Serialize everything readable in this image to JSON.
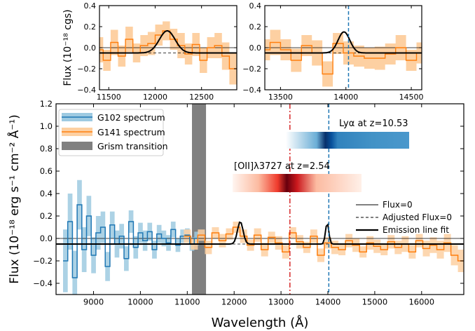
{
  "chart_data": [
    {
      "type": "line",
      "panel": "inset-left",
      "ylabel": "Flux (10⁻¹⁸ cgs)",
      "xlim": [
        11400,
        12880
      ],
      "ylim": [
        -0.4,
        0.4
      ],
      "xticks": [
        11500,
        12000,
        12500
      ],
      "yticks": [
        -0.4,
        -0.2,
        0.0,
        0.2,
        0.4
      ],
      "ytick_labels": [
        "−0.4",
        "−0.2",
        "0.0",
        "0.2",
        "0.4"
      ],
      "flux_zero": 0.0,
      "adjusted_zero": -0.05,
      "line_fit": {
        "center": 12130,
        "sigma": 85,
        "amplitude": 0.21
      },
      "series": [
        {
          "x": [
            11400,
            11480,
            11560,
            11640,
            11720,
            11800,
            11880,
            11960,
            12040,
            12120,
            12200,
            12280,
            12360,
            12440,
            12520,
            12600,
            12680,
            12760,
            12840
          ],
          "y": [
            -0.02,
            -0.12,
            0.05,
            -0.08,
            0.08,
            -0.05,
            0.02,
            0.04,
            0.12,
            0.16,
            0.08,
            0.02,
            -0.06,
            0.03,
            -0.12,
            0.0,
            0.02,
            -0.08,
            -0.2
          ],
          "err": [
            0.12,
            0.1,
            0.12,
            0.1,
            0.12,
            0.09,
            0.1,
            0.11,
            0.1,
            0.09,
            0.1,
            0.12,
            0.1,
            0.11,
            0.12,
            0.1,
            0.12,
            0.13,
            0.15
          ]
        }
      ]
    },
    {
      "type": "line",
      "panel": "inset-right",
      "xlim": [
        13380,
        14580
      ],
      "ylim": [
        -0.4,
        0.4
      ],
      "xticks": [
        13500,
        14000,
        14500
      ],
      "yticks": [
        -0.4,
        -0.2,
        0.0,
        0.2,
        0.4
      ],
      "ytick_labels": [
        "−0.4",
        "−0.2",
        "0.0",
        "0.2",
        "0.4"
      ],
      "flux_zero": 0.0,
      "adjusted_zero": -0.05,
      "lya_wavelength": 14020,
      "line_fit": {
        "center": 13985,
        "sigma": 45,
        "amplitude": 0.2
      },
      "series": [
        {
          "x": [
            13380,
            13460,
            13540,
            13620,
            13700,
            13780,
            13860,
            13940,
            14020,
            14100,
            14180,
            14260,
            14340,
            14420,
            14500,
            14580
          ],
          "y": [
            -0.02,
            0.05,
            -0.02,
            -0.12,
            0.02,
            -0.05,
            -0.25,
            0.04,
            -0.05,
            -0.08,
            -0.1,
            -0.1,
            -0.06,
            0.0,
            -0.12,
            -0.05
          ],
          "err": [
            0.1,
            0.12,
            0.1,
            0.11,
            0.1,
            0.12,
            0.12,
            0.1,
            0.11,
            0.1,
            0.1,
            0.11,
            0.1,
            0.12,
            0.1,
            0.1
          ]
        }
      ]
    },
    {
      "type": "line",
      "panel": "main",
      "xlabel": "Wavelength (Å)",
      "ylabel": "Flux (10⁻¹⁸ erg s⁻¹ cm⁻² Å⁻¹)",
      "xlim": [
        8200,
        16900
      ],
      "ylim": [
        -0.5,
        1.2
      ],
      "xticks": [
        9000,
        10000,
        11000,
        12000,
        13000,
        14000,
        15000,
        16000
      ],
      "yticks": [
        -0.4,
        -0.2,
        0.0,
        0.2,
        0.4,
        0.6,
        0.8,
        1.0,
        1.2
      ],
      "ytick_labels": [
        "−0.4",
        "−0.2",
        "0.0",
        "0.2",
        "0.4",
        "0.6",
        "0.8",
        "1.0",
        "1.2"
      ],
      "flux_zero": 0.0,
      "adjusted_zero": -0.05,
      "grism_transition": [
        11100,
        11400
      ],
      "oii_wavelength": 13190,
      "lya_wavelength": 14020,
      "fits": [
        {
          "center": 12130,
          "sigma": 60,
          "amplitude": 0.2
        },
        {
          "center": 13985,
          "sigma": 35,
          "amplitude": 0.19
        }
      ],
      "series": [
        {
          "name": "G102 spectrum",
          "color": "#1f77b4",
          "band_color": "#9ecae1",
          "x": [
            8400,
            8500,
            8600,
            8700,
            8800,
            8900,
            9000,
            9100,
            9200,
            9300,
            9400,
            9500,
            9600,
            9700,
            9800,
            9900,
            10000,
            10100,
            10200,
            10300,
            10400,
            10500,
            10600,
            10700,
            10800,
            10900,
            11000,
            11100,
            11200
          ],
          "y": [
            -0.2,
            0.15,
            -0.35,
            0.3,
            -0.1,
            0.2,
            -0.15,
            0.05,
            0.1,
            -0.25,
            0.12,
            -0.05,
            0.02,
            -0.18,
            0.15,
            -0.08,
            0.05,
            -0.02,
            0.06,
            -0.1,
            0.04,
            0.0,
            -0.04,
            0.08,
            -0.06,
            0.02,
            0.03,
            -0.05,
            0.0
          ],
          "err": [
            0.28,
            0.25,
            0.24,
            0.22,
            0.2,
            0.18,
            0.16,
            0.15,
            0.14,
            0.13,
            0.12,
            0.12,
            0.11,
            0.11,
            0.1,
            0.1,
            0.09,
            0.09,
            0.08,
            0.08,
            0.08,
            0.07,
            0.07,
            0.07,
            0.06,
            0.06,
            0.06,
            0.06,
            0.06
          ]
        },
        {
          "name": "G141 spectrum",
          "color": "#ff7f0e",
          "band_color": "#fdd0a2",
          "x": [
            11000,
            11150,
            11300,
            11450,
            11600,
            11750,
            11900,
            12050,
            12200,
            12350,
            12500,
            12650,
            12800,
            12950,
            13100,
            13250,
            13400,
            13550,
            13700,
            13850,
            14000,
            14150,
            14300,
            14450,
            14600,
            14750,
            14900,
            15050,
            15200,
            15350,
            15500,
            15650,
            15800,
            15950,
            16100,
            16250,
            16400,
            16550,
            16700,
            16850
          ],
          "y": [
            0.02,
            -0.05,
            0.03,
            -0.08,
            0.05,
            -0.02,
            0.04,
            0.1,
            0.02,
            -0.06,
            0.03,
            -0.1,
            0.01,
            -0.04,
            -0.12,
            0.05,
            -0.03,
            -0.08,
            0.02,
            -0.15,
            -0.04,
            -0.08,
            -0.1,
            -0.02,
            -0.06,
            -0.12,
            -0.04,
            -0.07,
            -0.1,
            -0.03,
            -0.08,
            -0.05,
            -0.12,
            -0.02,
            -0.09,
            -0.06,
            -0.1,
            -0.04,
            -0.15,
            -0.2
          ],
          "err": [
            0.06,
            0.05,
            0.05,
            0.06,
            0.05,
            0.06,
            0.05,
            0.05,
            0.06,
            0.05,
            0.06,
            0.06,
            0.05,
            0.06,
            0.06,
            0.05,
            0.06,
            0.05,
            0.06,
            0.06,
            0.05,
            0.06,
            0.05,
            0.06,
            0.06,
            0.05,
            0.06,
            0.06,
            0.05,
            0.06,
            0.06,
            0.07,
            0.06,
            0.06,
            0.07,
            0.07,
            0.08,
            0.08,
            0.09,
            0.1
          ]
        }
      ]
    }
  ],
  "legend_left": {
    "g102": "G102 spectrum",
    "g141": "G141 spectrum",
    "grism": "Grism transition",
    "colors": {
      "g102": "#1f77b4",
      "g141": "#ff7f0e",
      "grism": "#808080"
    }
  },
  "legend_right": {
    "flux_zero": "Flux=0",
    "adjusted": "Adjusted Flux=0",
    "fit": "Emission line fit"
  },
  "annotations": {
    "lya_label": "Lyα at z=10.53",
    "oii_label": "[OII]λ3727 at z=2.54",
    "lya_color": "#1f77b4",
    "oii_color": "#d62728"
  }
}
